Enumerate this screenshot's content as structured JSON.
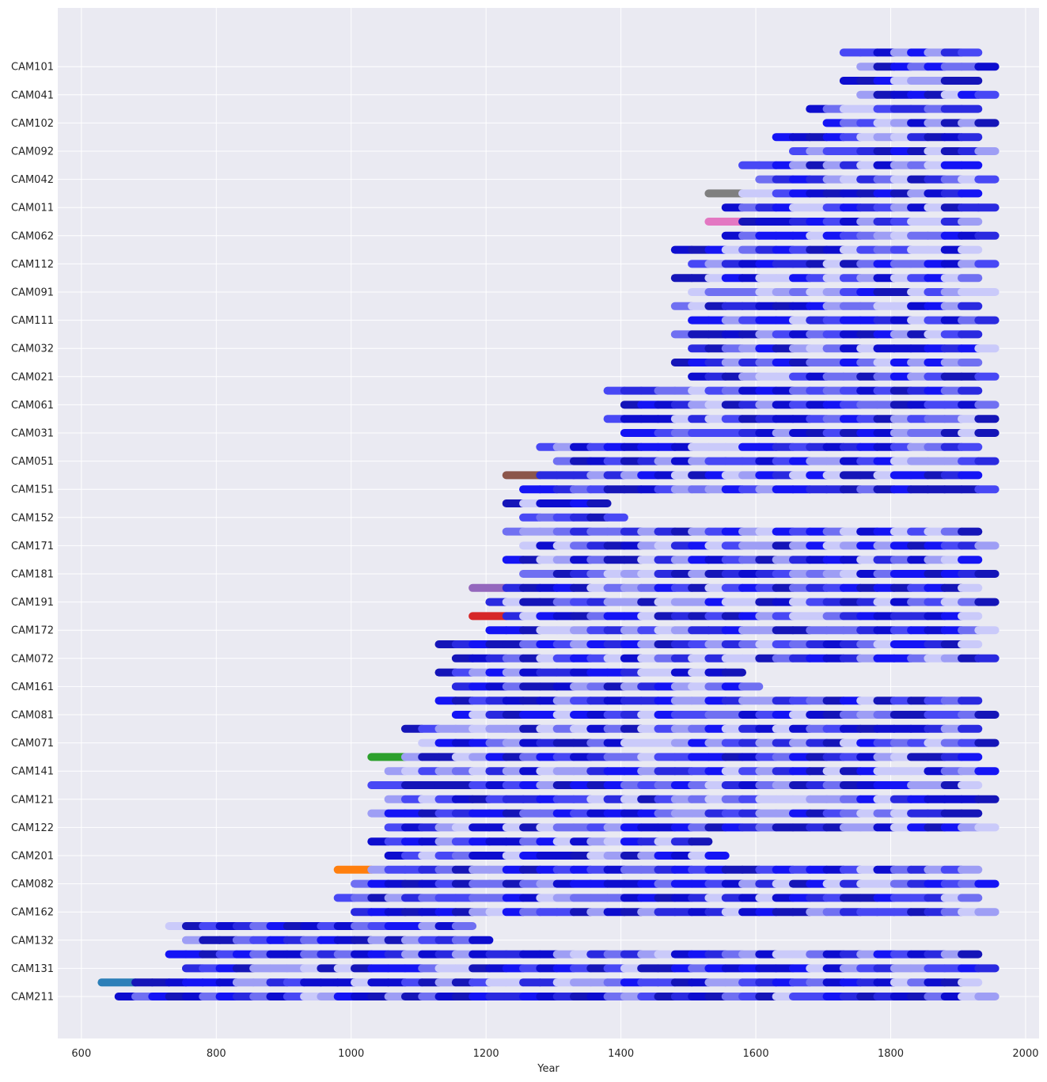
{
  "chart_data": {
    "type": "bar",
    "orientation": "horizontal-ranges",
    "title": "",
    "xlabel": "Year",
    "ylabel": "",
    "xlim": [
      565,
      2020
    ],
    "x_ticks": [
      600,
      800,
      1000,
      1200,
      1400,
      1600,
      1800,
      2000
    ],
    "grid": true,
    "legend": "none",
    "colors": {
      "background": "#eaeaf2",
      "grid": "#ffffff",
      "blue_shades": [
        "#1414f5",
        "#1515b8",
        "#4848f5",
        "#0d0dcf",
        "#7070f2",
        "#9e9ef5",
        "#cacafa",
        "#2a2ae0"
      ],
      "origin_colors": [
        "#2c7fb8",
        "#ff7f0e",
        "#2ca02c",
        "#d62728",
        "#9467bd",
        "#8c564b",
        "#e377c2",
        "#7f7f7f"
      ]
    },
    "y_labels": [
      "CAM211",
      "CAM131",
      "CAM132",
      "CAM162",
      "CAM082",
      "CAM201",
      "CAM122",
      "CAM121",
      "CAM141",
      "CAM071",
      "CAM081",
      "CAM161",
      "CAM072",
      "CAM172",
      "CAM191",
      "CAM181",
      "CAM171",
      "CAM152",
      "CAM151",
      "CAM051",
      "CAM031",
      "CAM061",
      "CAM021",
      "CAM032",
      "CAM111",
      "CAM091",
      "CAM112",
      "CAM062",
      "CAM011",
      "CAM042",
      "CAM092",
      "CAM102",
      "CAM041",
      "CAM101"
    ],
    "rows": [
      {
        "start": 655,
        "end": 1955,
        "origin": null
      },
      {
        "start": 630,
        "end": 1930,
        "origin": 0
      },
      {
        "start": 755,
        "end": 1955,
        "origin": null
      },
      {
        "start": 730,
        "end": 1930,
        "origin": null
      },
      {
        "start": 755,
        "end": 1205,
        "origin": null
      },
      {
        "start": 730,
        "end": 1180,
        "origin": null
      },
      {
        "start": 1005,
        "end": 1955,
        "origin": null
      },
      {
        "start": 980,
        "end": 1930,
        "origin": null
      },
      {
        "start": 1005,
        "end": 1955,
        "origin": null
      },
      {
        "start": 980,
        "end": 1930,
        "origin": 1
      },
      {
        "start": 1055,
        "end": 1555,
        "origin": null
      },
      {
        "start": 1030,
        "end": 1530,
        "origin": null
      },
      {
        "start": 1055,
        "end": 1955,
        "origin": null
      },
      {
        "start": 1030,
        "end": 1930,
        "origin": null
      },
      {
        "start": 1055,
        "end": 1955,
        "origin": null
      },
      {
        "start": 1030,
        "end": 1930,
        "origin": null
      },
      {
        "start": 1055,
        "end": 1955,
        "origin": null
      },
      {
        "start": 1030,
        "end": 1930,
        "origin": 2
      },
      {
        "start": 1105,
        "end": 1955,
        "origin": null
      },
      {
        "start": 1080,
        "end": 1930,
        "origin": null
      },
      {
        "start": 1155,
        "end": 1955,
        "origin": null
      },
      {
        "start": 1130,
        "end": 1930,
        "origin": null
      },
      {
        "start": 1155,
        "end": 1605,
        "origin": null
      },
      {
        "start": 1130,
        "end": 1580,
        "origin": null
      },
      {
        "start": 1155,
        "end": 1955,
        "origin": null
      },
      {
        "start": 1130,
        "end": 1930,
        "origin": null
      },
      {
        "start": 1205,
        "end": 1955,
        "origin": null
      },
      {
        "start": 1180,
        "end": 1930,
        "origin": 3
      },
      {
        "start": 1205,
        "end": 1955,
        "origin": null
      },
      {
        "start": 1180,
        "end": 1930,
        "origin": 4
      },
      {
        "start": 1255,
        "end": 1955,
        "origin": null
      },
      {
        "start": 1230,
        "end": 1930,
        "origin": null
      },
      {
        "start": 1255,
        "end": 1955,
        "origin": null
      },
      {
        "start": 1230,
        "end": 1930,
        "origin": null
      },
      {
        "start": 1255,
        "end": 1405,
        "origin": null
      },
      {
        "start": 1230,
        "end": 1380,
        "origin": null
      },
      {
        "start": 1255,
        "end": 1955,
        "origin": null
      },
      {
        "start": 1230,
        "end": 1930,
        "origin": 5
      },
      {
        "start": 1305,
        "end": 1955,
        "origin": null
      },
      {
        "start": 1280,
        "end": 1930,
        "origin": null
      },
      {
        "start": 1405,
        "end": 1955,
        "origin": null
      },
      {
        "start": 1380,
        "end": 1955,
        "origin": null
      },
      {
        "start": 1405,
        "end": 1955,
        "origin": null
      },
      {
        "start": 1380,
        "end": 1930,
        "origin": null
      },
      {
        "start": 1505,
        "end": 1955,
        "origin": null
      },
      {
        "start": 1480,
        "end": 1930,
        "origin": null
      },
      {
        "start": 1505,
        "end": 1955,
        "origin": null
      },
      {
        "start": 1480,
        "end": 1930,
        "origin": null
      },
      {
        "start": 1505,
        "end": 1955,
        "origin": null
      },
      {
        "start": 1480,
        "end": 1930,
        "origin": null
      },
      {
        "start": 1505,
        "end": 1955,
        "origin": null
      },
      {
        "start": 1480,
        "end": 1930,
        "origin": null
      },
      {
        "start": 1505,
        "end": 1955,
        "origin": null
      },
      {
        "start": 1480,
        "end": 1930,
        "origin": null
      },
      {
        "start": 1555,
        "end": 1955,
        "origin": null
      },
      {
        "start": 1530,
        "end": 1930,
        "origin": 6
      },
      {
        "start": 1555,
        "end": 1955,
        "origin": null
      },
      {
        "start": 1530,
        "end": 1930,
        "origin": 7
      },
      {
        "start": 1605,
        "end": 1955,
        "origin": null
      },
      {
        "start": 1580,
        "end": 1930,
        "origin": null
      },
      {
        "start": 1655,
        "end": 1955,
        "origin": null
      },
      {
        "start": 1630,
        "end": 1930,
        "origin": null
      },
      {
        "start": 1705,
        "end": 1955,
        "origin": null
      },
      {
        "start": 1680,
        "end": 1930,
        "origin": null
      },
      {
        "start": 1755,
        "end": 1955,
        "origin": null
      },
      {
        "start": 1730,
        "end": 1930,
        "origin": null
      },
      {
        "start": 1755,
        "end": 1955,
        "origin": null
      },
      {
        "start": 1730,
        "end": 1930,
        "origin": null
      }
    ]
  }
}
